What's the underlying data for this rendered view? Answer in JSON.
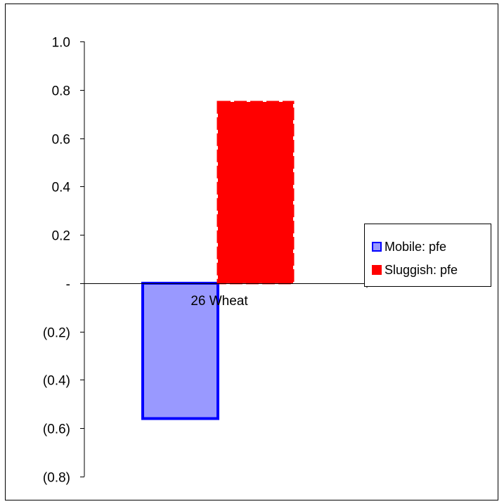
{
  "chart_data": {
    "type": "bar",
    "categories": [
      "26 Wheat"
    ],
    "series": [
      {
        "name": "Mobile: pfe",
        "values": [
          -0.56
        ],
        "fill": "#9999ff",
        "stroke": "#0000ff"
      },
      {
        "name": "Sluggish: pfe",
        "values": [
          0.75
        ],
        "fill": "#ff0000",
        "stroke": "#ff0000",
        "stroke_style": "dashed"
      }
    ],
    "title": "",
    "xlabel": "",
    "ylabel": "",
    "ylim": [
      -0.8,
      1.0
    ],
    "yticks": [
      1.0,
      0.8,
      0.6,
      0.4,
      0.2,
      0.0,
      -0.2,
      -0.4,
      -0.6,
      -0.8
    ],
    "ytick_labels": [
      "1.0",
      "0.8",
      "0.6",
      "0.4",
      "0.2",
      "-",
      "(0.2)",
      "(0.4)",
      "(0.6)",
      "(0.8)"
    ],
    "grid": false,
    "legend_position": "right"
  }
}
